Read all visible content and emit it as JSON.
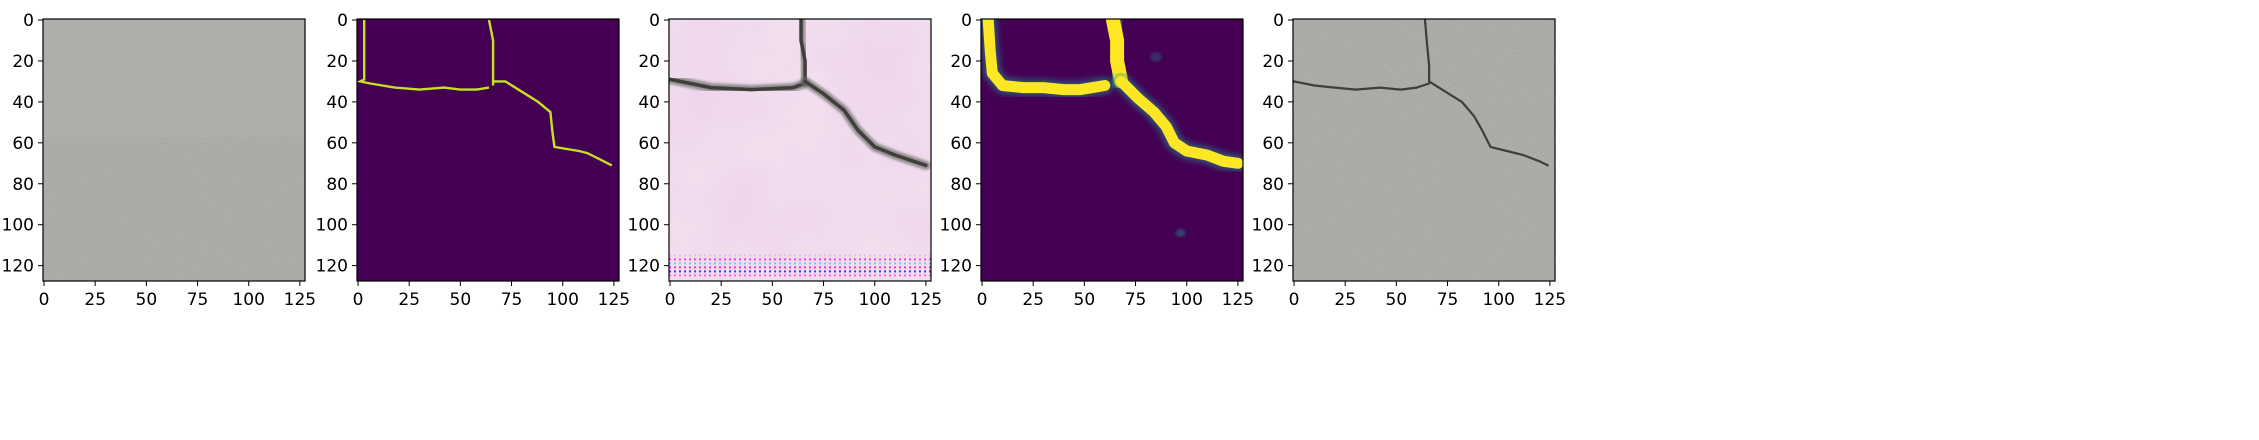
{
  "chart_data": [
    {
      "type": "heatmap",
      "panel": "input-photo",
      "content": "grey concrete surface, no crack",
      "xlim": [
        0,
        127
      ],
      "ylim": [
        127,
        0
      ],
      "xticks": [
        0,
        25,
        50,
        75,
        100,
        125
      ],
      "yticks": [
        0,
        20,
        40,
        60,
        80,
        100,
        120
      ]
    },
    {
      "type": "heatmap",
      "panel": "ground-truth-mask",
      "colormap": "viridis",
      "colors": {
        "background": "#440154",
        "crack": "#c7e020"
      },
      "crack_polylines": [
        [
          [
            3,
            0
          ],
          [
            3,
            29
          ],
          [
            1,
            30
          ],
          [
            6,
            31
          ],
          [
            18,
            33
          ],
          [
            30,
            34
          ],
          [
            42,
            33
          ],
          [
            50,
            34
          ],
          [
            58,
            34
          ],
          [
            64,
            33
          ]
        ],
        [
          [
            64,
            0
          ],
          [
            66,
            10
          ],
          [
            66,
            20
          ],
          [
            66,
            32
          ]
        ],
        [
          [
            66,
            30
          ],
          [
            72,
            30
          ],
          [
            80,
            35
          ],
          [
            88,
            40
          ],
          [
            94,
            45
          ],
          [
            95,
            55
          ],
          [
            96,
            62
          ],
          [
            102,
            63
          ],
          [
            108,
            64
          ],
          [
            112,
            65
          ],
          [
            118,
            68
          ],
          [
            124,
            71
          ]
        ]
      ],
      "xlim": [
        0,
        127
      ],
      "ylim": [
        127,
        0
      ],
      "xticks": [
        0,
        25,
        50,
        75,
        100,
        125
      ],
      "yticks": [
        0,
        20,
        40,
        60,
        80,
        100,
        120
      ]
    },
    {
      "type": "heatmap",
      "panel": "generated-image",
      "content": "pink/white textured image with dark crack, colored stripe artifacts at bottom rows",
      "crack_polylines": [
        [
          [
            0,
            29
          ],
          [
            20,
            33
          ],
          [
            40,
            34
          ],
          [
            60,
            33
          ],
          [
            66,
            31
          ]
        ],
        [
          [
            64,
            0
          ],
          [
            64,
            10
          ],
          [
            66,
            20
          ],
          [
            66,
            30
          ]
        ],
        [
          [
            66,
            30
          ],
          [
            75,
            36
          ],
          [
            85,
            44
          ],
          [
            92,
            54
          ],
          [
            100,
            62
          ],
          [
            110,
            66
          ],
          [
            125,
            71
          ]
        ]
      ],
      "xlim": [
        0,
        127
      ],
      "ylim": [
        127,
        0
      ],
      "xticks": [
        0,
        25,
        50,
        75,
        100,
        125
      ],
      "yticks": [
        0,
        20,
        40,
        60,
        80,
        100,
        120
      ]
    },
    {
      "type": "heatmap",
      "panel": "predicted-mask",
      "colormap": "viridis",
      "colors": {
        "background": "#440154",
        "crack": "#fde725",
        "edge": "#21918c"
      },
      "crack_polylines": [
        [
          [
            3,
            0
          ],
          [
            4,
            15
          ],
          [
            5,
            26
          ],
          [
            10,
            32
          ],
          [
            20,
            33
          ],
          [
            30,
            33
          ],
          [
            40,
            34
          ],
          [
            48,
            34
          ],
          [
            54,
            33
          ],
          [
            60,
            32
          ]
        ],
        [
          [
            64,
            0
          ],
          [
            66,
            10
          ],
          [
            66,
            20
          ],
          [
            68,
            30
          ]
        ],
        [
          [
            68,
            30
          ],
          [
            76,
            38
          ],
          [
            84,
            45
          ],
          [
            90,
            52
          ],
          [
            94,
            60
          ],
          [
            100,
            64
          ],
          [
            110,
            66
          ],
          [
            118,
            69
          ],
          [
            125,
            70
          ]
        ]
      ],
      "xlim": [
        0,
        127
      ],
      "ylim": [
        127,
        0
      ],
      "xticks": [
        0,
        25,
        50,
        75,
        100,
        125
      ],
      "yticks": [
        0,
        20,
        40,
        60,
        80,
        100,
        120
      ]
    },
    {
      "type": "heatmap",
      "panel": "overlay",
      "content": "grey concrete surface with thin dark crack",
      "crack_polylines": [
        [
          [
            0,
            30
          ],
          [
            10,
            32
          ],
          [
            20,
            33
          ],
          [
            30,
            34
          ],
          [
            42,
            33
          ],
          [
            52,
            34
          ],
          [
            60,
            33
          ],
          [
            66,
            31
          ]
        ],
        [
          [
            64,
            0
          ],
          [
            65,
            12
          ],
          [
            66,
            22
          ],
          [
            66,
            30
          ]
        ],
        [
          [
            66,
            30
          ],
          [
            74,
            35
          ],
          [
            82,
            40
          ],
          [
            88,
            47
          ],
          [
            92,
            54
          ],
          [
            96,
            62
          ],
          [
            104,
            64
          ],
          [
            112,
            66
          ],
          [
            120,
            69
          ],
          [
            124,
            71
          ]
        ]
      ],
      "xlim": [
        0,
        127
      ],
      "ylim": [
        127,
        0
      ],
      "xticks": [
        0,
        25,
        50,
        75,
        100,
        125
      ],
      "yticks": [
        0,
        20,
        40,
        60,
        80,
        100,
        120
      ]
    }
  ],
  "colors": {
    "concrete": "#a7a7a4",
    "concrete_light": "#b4b4b1",
    "pink_light": "#f2dcef",
    "pink": "#d8a9d2",
    "crack_dark": "#3e3e3b"
  }
}
